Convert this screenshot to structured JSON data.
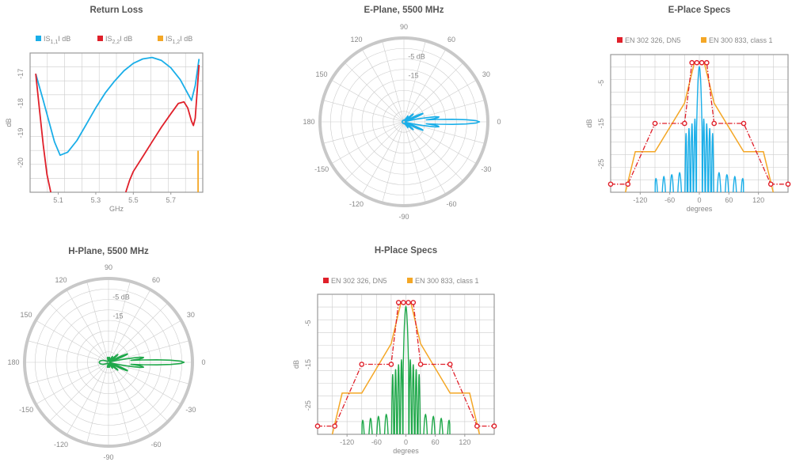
{
  "colors": {
    "blue": "#1aaee8",
    "red": "#e0202a",
    "orange": "#f4a726",
    "green": "#1fa84a",
    "grid": "#cccccc",
    "axis": "#999999"
  },
  "chart_data": [
    {
      "id": "return-loss",
      "type": "line",
      "title": "Return Loss",
      "xlabel": "GHz",
      "ylabel": "dB",
      "xlim": [
        4.95,
        5.87
      ],
      "ylim": [
        -21,
        -16.3
      ],
      "xticks": [
        "5.1",
        "5.3",
        "5.5",
        "5.7"
      ],
      "yticks": [
        "-17",
        "-18",
        "-19",
        "-20"
      ],
      "legend": [
        "|S1,1| dB",
        "|S2,2| dB",
        "|S1,2| dB"
      ],
      "legend_display": [
        {
          "main": "IS",
          "sub": "1,1",
          "tail": "I dB"
        },
        {
          "main": "IS",
          "sub": "2,2",
          "tail": "I dB"
        },
        {
          "main": "IS",
          "sub": "1,2",
          "tail": "I dB"
        }
      ],
      "series": [
        {
          "name": "|S1,1| dB",
          "color": "blue",
          "x": [
            4.98,
            5.02,
            5.05,
            5.08,
            5.11,
            5.15,
            5.2,
            5.25,
            5.3,
            5.35,
            5.4,
            5.45,
            5.5,
            5.55,
            5.6,
            5.65,
            5.7,
            5.75,
            5.78,
            5.81,
            5.83,
            5.85
          ],
          "y": [
            -17.0,
            -17.9,
            -18.6,
            -19.3,
            -19.75,
            -19.65,
            -19.25,
            -18.7,
            -18.15,
            -17.65,
            -17.25,
            -16.9,
            -16.65,
            -16.5,
            -16.45,
            -16.55,
            -16.8,
            -17.2,
            -17.55,
            -17.9,
            -17.4,
            -16.5
          ]
        },
        {
          "name": "|S2,2| dB",
          "color": "red",
          "x": [
            4.98,
            5.0,
            5.02,
            5.04,
            5.06
          ],
          "y": [
            -17.0,
            -18.2,
            -19.4,
            -20.4,
            -21.0
          ]
        },
        {
          "name": "|S2,2| dB",
          "color": "red",
          "x": [
            5.46,
            5.48,
            5.5,
            5.55,
            5.6,
            5.65,
            5.7,
            5.74,
            5.77,
            5.79,
            5.81,
            5.82,
            5.83,
            5.84,
            5.85
          ],
          "y": [
            -21.0,
            -20.6,
            -20.3,
            -19.8,
            -19.3,
            -18.8,
            -18.35,
            -18.0,
            -17.95,
            -18.15,
            -18.6,
            -18.75,
            -18.5,
            -17.6,
            -16.7
          ]
        },
        {
          "name": "|S1,2| dB",
          "color": "orange",
          "x": [
            5.845,
            5.845
          ],
          "y": [
            -21.0,
            -19.6
          ]
        }
      ]
    },
    {
      "id": "e-plane",
      "type": "polar",
      "title": "E-Plane, 5500 MHz",
      "color": "blue",
      "angle_labels": [
        "90",
        "60",
        "30",
        "0",
        "-30",
        "-60",
        "-90",
        "-120",
        "-150",
        "180",
        "150",
        "120"
      ],
      "angle_label_display": [
        "90",
        "60",
        "30",
        "0",
        "-30",
        "-60",
        "-90",
        "-120",
        "-150",
        "180",
        "150",
        "120"
      ],
      "radial_labels": [
        "-5 dB",
        "-15"
      ],
      "radial_label_display": [
        "-5 dB",
        "-15"
      ]
    },
    {
      "id": "e-specs",
      "type": "line",
      "title": "E-Place Specs",
      "xlabel": "degrees",
      "ylabel": "dB",
      "xlim": [
        -180,
        180
      ],
      "ylim": [
        -32,
        2
      ],
      "xticks": [
        "-120",
        "-60",
        "0",
        "60",
        "120"
      ],
      "yticks": [
        "-5",
        "-15",
        "-25"
      ],
      "legend": [
        "EN 302 326, DN5",
        "EN 300 833, class 1"
      ],
      "pattern_color": "blue"
    },
    {
      "id": "h-plane",
      "type": "polar",
      "title": "H-Plane, 5500 MHz",
      "color": "green",
      "angle_labels": [
        "90",
        "60",
        "30",
        "0",
        "-30",
        "-60",
        "-90",
        "-120",
        "-150",
        "180",
        "150",
        "120"
      ],
      "radial_labels": [
        "-5 dB",
        "-15"
      ]
    },
    {
      "id": "h-specs",
      "type": "line",
      "title": "H-Place Specs",
      "xlabel": "degrees",
      "ylabel": "dB",
      "xlim": [
        -180,
        180
      ],
      "ylim": [
        -32,
        2
      ],
      "xticks": [
        "-120",
        "-60",
        "0",
        "60",
        "120"
      ],
      "yticks": [
        "-5",
        "-15",
        "-25"
      ],
      "legend": [
        "EN 302 326, DN5",
        "EN 300 833, class 1"
      ],
      "pattern_color": "green"
    }
  ],
  "spec_masks": {
    "dn5_x": [
      -180,
      -145,
      -90,
      -30,
      -15,
      -5,
      5,
      15,
      30,
      90,
      145,
      180
    ],
    "dn5_y": [
      -30,
      -30,
      -15,
      -15,
      0,
      0,
      0,
      0,
      -15,
      -15,
      -30,
      -30
    ],
    "class1_x": [
      -150,
      -130,
      -90,
      -30,
      -10,
      -5,
      5,
      10,
      30,
      90,
      130,
      150
    ],
    "class1_y": [
      -32,
      -22,
      -22,
      -10,
      0,
      0,
      0,
      0,
      -10,
      -22,
      -22,
      -32
    ]
  }
}
